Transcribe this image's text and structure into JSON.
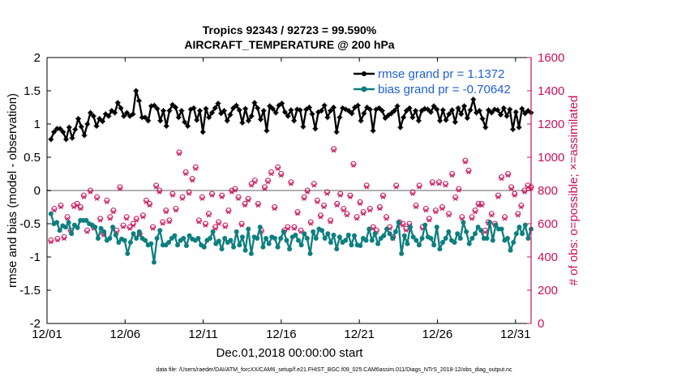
{
  "chart_data": {
    "type": "line",
    "title_line1": "Tropics 92343 / 92723 = 99.590%",
    "title_line2": "AIRCRAFT_TEMPERATURE @ 200 hPa",
    "xlabel": "Dec.01,2018 00:00:00 start",
    "ylabel_left": "rmse and bias (model - observation)",
    "ylabel_right": "# of obs: o=possible; ×=assimilated",
    "x_range": [
      1,
      32
    ],
    "ylim_left": [
      -2,
      2
    ],
    "ylim_right": [
      0,
      1600
    ],
    "x_ticks": [
      {
        "label": "12/01",
        "day": 1
      },
      {
        "label": "12/06",
        "day": 6
      },
      {
        "label": "12/11",
        "day": 11
      },
      {
        "label": "12/16",
        "day": 16
      },
      {
        "label": "12/21",
        "day": 21
      },
      {
        "label": "12/26",
        "day": 26
      },
      {
        "label": "12/31",
        "day": 31
      }
    ],
    "y_ticks_left": [
      "-2",
      "-1.5",
      "-1",
      "-0.5",
      "0",
      "0.5",
      "1",
      "1.5",
      "2"
    ],
    "y_ticks_left_values": [
      -2,
      -1.5,
      -1,
      -0.5,
      0,
      0.5,
      1,
      1.5,
      2
    ],
    "y_ticks_right": [
      "0",
      "200",
      "400",
      "600",
      "800",
      "1000",
      "1200",
      "1400",
      "1600"
    ],
    "y_ticks_right_values": [
      0,
      200,
      400,
      600,
      800,
      1000,
      1200,
      1400,
      1600
    ],
    "legend": [
      {
        "label": "rmse grand pr = 1.1372",
        "color": "#000000"
      },
      {
        "label": "bias grand pr = -0.70642",
        "color": "#0d7f7f"
      }
    ],
    "colors": {
      "rmse": "#000000",
      "bias": "#0d7f7f",
      "obs": "#c8105a",
      "zero_line": "#b0b0b0"
    },
    "series": [
      {
        "name": "rmse",
        "values": [
          0.77,
          0.88,
          0.93,
          0.93,
          0.88,
          0.77,
          0.95,
          0.79,
          0.92,
          1.08,
          0.96,
          0.83,
          1.0,
          1.17,
          1.12,
          0.97,
          1.08,
          1.04,
          1.15,
          1.12,
          1.2,
          1.17,
          1.32,
          1.24,
          1.12,
          1.17,
          1.12,
          1.15,
          1.5,
          1.35,
          1.1,
          1.1,
          1.05,
          1.27,
          1.28,
          1.23,
          1.05,
          1.2,
          0.97,
          1.2,
          1.29,
          1.25,
          1.1,
          1.2,
          1.03,
          0.97,
          1.22,
          1.24,
          1.06,
          1.2,
          0.88,
          1.23,
          1.1,
          1.17,
          1.24,
          1.31,
          1.16,
          1.2,
          1.05,
          1.14,
          1.24,
          1.28,
          1.21,
          1.02,
          1.23,
          1.05,
          1.12,
          1.32,
          1.24,
          1.07,
          1.2,
          0.9,
          1.27,
          1.23,
          1.17,
          1.28,
          1.31,
          1.18,
          1.12,
          1.21,
          1.05,
          1.22,
          1.21,
          0.96,
          1.22,
          1.25,
          1.15,
          0.93,
          1.18,
          1.2,
          1.28,
          1.1,
          1.2,
          1.25,
          0.88,
          1.1,
          1.24,
          1.22,
          1.2,
          1.16,
          1.25,
          1.28,
          1.05,
          1.16,
          1.25,
          1.22,
          0.9,
          1.22,
          1.24,
          1.2,
          1.09,
          1.13,
          1.16,
          1.2,
          1.27,
          0.95,
          1.1,
          1.2,
          1.24,
          1.1,
          1.2,
          1.05,
          1.2,
          1.23,
          1.22,
          1.18,
          1.27,
          1.22,
          1.05,
          1.21,
          1.06,
          1.15,
          1.21,
          1.03,
          1.24,
          1.15,
          1.27,
          1.09,
          1.21,
          1.37,
          1.17,
          1.2,
          1.08,
          0.95,
          1.21,
          1.17,
          1.22,
          1.21,
          1.14,
          1.24,
          1.12,
          1.22,
          0.92,
          1.18,
          0.95,
          1.23,
          1.16,
          1.2,
          1.17
        ]
      },
      {
        "name": "bias",
        "values": [
          -0.35,
          -0.5,
          -0.48,
          -0.6,
          -0.53,
          -0.55,
          -0.48,
          -0.65,
          -0.52,
          -0.56,
          -0.45,
          -0.45,
          -0.45,
          -0.5,
          -0.52,
          -0.55,
          -0.72,
          -0.57,
          -0.62,
          -0.75,
          -0.72,
          -0.55,
          -0.67,
          -0.78,
          -0.73,
          -0.75,
          -0.95,
          -0.78,
          -0.65,
          -0.72,
          -0.62,
          -0.72,
          -0.75,
          -0.82,
          -0.8,
          -1.08,
          -0.72,
          -0.6,
          -0.82,
          -0.82,
          -0.78,
          -0.72,
          -0.68,
          -0.82,
          -0.75,
          -0.72,
          -0.83,
          -0.68,
          -0.73,
          -0.75,
          -0.72,
          -0.82,
          -0.85,
          -0.75,
          -0.72,
          -0.62,
          -0.8,
          -0.76,
          -0.88,
          -0.72,
          -0.78,
          -0.75,
          -0.85,
          -0.62,
          -0.82,
          -0.7,
          -0.9,
          -0.58,
          -0.95,
          -0.7,
          -0.72,
          -0.55,
          -0.85,
          -0.72,
          -0.8,
          -0.7,
          -0.72,
          -0.85,
          -0.72,
          -0.62,
          -0.75,
          -0.88,
          -0.7,
          -0.67,
          -0.75,
          -0.82,
          -0.65,
          -0.72,
          -0.95,
          -0.62,
          -0.72,
          -0.58,
          -0.6,
          -0.72,
          -0.65,
          -0.78,
          -0.67,
          -0.88,
          -0.7,
          -0.78,
          -0.75,
          -0.67,
          -0.82,
          -0.68,
          -0.82,
          -0.83,
          -0.72,
          -0.75,
          -0.58,
          -0.75,
          -0.65,
          -0.8,
          -0.72,
          -0.68,
          -0.58,
          -0.65,
          -0.72,
          -0.62,
          -0.48,
          -0.95,
          -0.68,
          -0.8,
          -0.55,
          -0.7,
          -0.75,
          -0.82,
          -0.72,
          -0.52,
          -0.7,
          -0.72,
          -0.82,
          -0.55,
          -0.88,
          -0.78,
          -0.72,
          -0.62,
          -0.75,
          -0.78,
          -0.65,
          -0.72,
          -0.48,
          -0.62,
          -0.8,
          -0.72,
          -0.65,
          -0.55,
          -0.6,
          -0.72,
          -0.72,
          -0.48,
          -0.75,
          -0.52,
          -0.58,
          -0.58,
          -0.75,
          -0.72,
          -0.9,
          -0.78,
          -0.65,
          -0.55,
          -0.65,
          -0.52,
          -0.72,
          -0.58
        ]
      },
      {
        "name": "obs_possible",
        "values": [
          500,
          690,
          510,
          710,
          520,
          640,
          560,
          710,
          720,
          700,
          770,
          560,
          800,
          580,
          760,
          630,
          540,
          740,
          640,
          680,
          560,
          820,
          590,
          640,
          580,
          600,
          630,
          540,
          650,
          740,
          720,
          580,
          830,
          800,
          610,
          680,
          620,
          780,
          690,
          1030,
          760,
          910,
          790,
          870,
          940,
          620,
          760,
          600,
          660,
          780,
          580,
          610,
          770,
          590,
          680,
          800,
          810,
          760,
          600,
          720,
          750,
          840,
          860,
          720,
          560,
          820,
          860,
          910,
          700,
          940,
          900,
          560,
          580,
          850,
          580,
          670,
          560,
          760,
          800,
          610,
          840,
          740,
          650,
          710,
          790,
          620,
          1050,
          720,
          780,
          690,
          660,
          770,
          960,
          640,
          730,
          670,
          830,
          690,
          580,
          560,
          700,
          770,
          640,
          580,
          520,
          830,
          610,
          600,
          570,
          600,
          790,
          710,
          830,
          580,
          690,
          630,
          850,
          680,
          850,
          700,
          840,
          660,
          900,
          760,
          810,
          640,
          980,
          920,
          640,
          680,
          720,
          720,
          560,
          610,
          660,
          600,
          770,
          880,
          640,
          900,
          820,
          780,
          660,
          710,
          800,
          830,
          820
        ]
      },
      {
        "name": "obs_assimilated",
        "values": [
          490,
          680,
          500,
          700,
          510,
          630,
          550,
          700,
          710,
          690,
          760,
          550,
          790,
          570,
          750,
          620,
          530,
          730,
          630,
          670,
          550,
          810,
          580,
          630,
          570,
          590,
          620,
          530,
          640,
          730,
          710,
          570,
          820,
          790,
          600,
          670,
          610,
          770,
          680,
          1020,
          750,
          900,
          780,
          860,
          930,
          610,
          750,
          590,
          650,
          770,
          570,
          600,
          760,
          580,
          670,
          790,
          800,
          750,
          590,
          710,
          740,
          830,
          850,
          710,
          550,
          810,
          850,
          900,
          690,
          930,
          890,
          550,
          570,
          840,
          570,
          660,
          550,
          750,
          790,
          600,
          830,
          730,
          640,
          700,
          780,
          610,
          1040,
          710,
          770,
          680,
          650,
          760,
          950,
          630,
          720,
          660,
          820,
          680,
          570,
          550,
          690,
          760,
          630,
          570,
          510,
          820,
          600,
          590,
          560,
          590,
          780,
          700,
          820,
          570,
          680,
          620,
          840,
          670,
          840,
          690,
          830,
          650,
          890,
          750,
          800,
          630,
          970,
          910,
          630,
          670,
          710,
          710,
          550,
          600,
          650,
          590,
          760,
          870,
          630,
          890,
          810,
          770,
          650,
          700,
          790,
          820,
          810
        ]
      }
    ]
  },
  "footer": "data file: /Users/raeder/DAI/ATM_forcXX/CAM6_setup/f.e21.FHIST_BGC.f09_025.CAM6assim.011/Diags_NTrS_2018-12/obs_diag_output.nc"
}
